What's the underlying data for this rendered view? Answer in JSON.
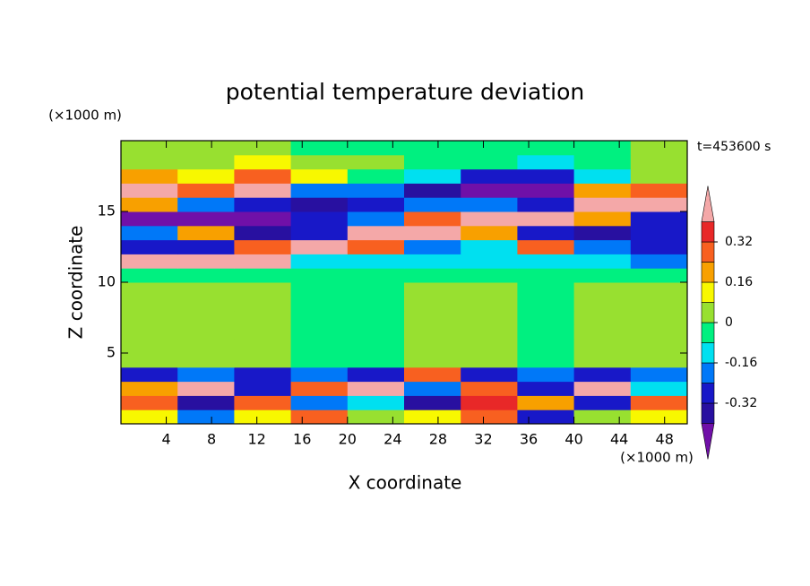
{
  "chart_data": {
    "type": "contour",
    "title": "potential temperature deviation",
    "x_label": "X coordinate",
    "y_label": "Z coordinate",
    "x_unit": "(×1000 m)",
    "y_unit": "(×1000 m)",
    "annotation": "t=453600 s",
    "xlim": [
      0,
      50
    ],
    "ylim": [
      0,
      20
    ],
    "xticks": [
      4,
      8,
      12,
      16,
      20,
      24,
      28,
      32,
      36,
      40,
      44,
      48
    ],
    "yticks": [
      5,
      10,
      15
    ],
    "xbins": [
      0,
      5,
      10,
      15,
      20,
      25,
      30,
      35,
      40,
      45,
      50
    ],
    "ybins": [
      0,
      1,
      2,
      3,
      4,
      5,
      6,
      7,
      8,
      9,
      10,
      11,
      12,
      13,
      14,
      15,
      16,
      17,
      18,
      19,
      20
    ],
    "values": [
      [
        0.12,
        -0.2,
        0.12,
        0.3,
        0.03,
        0.12,
        0.3,
        -0.3,
        0.03,
        0.12
      ],
      [
        0.3,
        -0.35,
        0.3,
        -0.2,
        -0.12,
        -0.35,
        0.36,
        0.2,
        -0.3,
        0.3
      ],
      [
        0.2,
        0.45,
        -0.3,
        0.3,
        0.45,
        -0.2,
        0.3,
        -0.3,
        0.45,
        -0.12
      ],
      [
        -0.3,
        -0.2,
        -0.3,
        -0.2,
        -0.3,
        0.3,
        -0.3,
        -0.2,
        -0.3,
        -0.2
      ],
      [
        0.03,
        0.03,
        0.03,
        -0.03,
        -0.03,
        0.03,
        0.03,
        -0.03,
        0.03,
        0.03
      ],
      [
        0.03,
        0.03,
        0.03,
        -0.03,
        -0.03,
        0.03,
        0.03,
        -0.03,
        0.03,
        0.03
      ],
      [
        0.03,
        0.03,
        0.03,
        -0.03,
        -0.03,
        0.03,
        0.03,
        -0.03,
        0.03,
        0.03
      ],
      [
        0.03,
        0.03,
        0.03,
        -0.03,
        -0.03,
        0.03,
        0.03,
        -0.03,
        0.03,
        0.03
      ],
      [
        0.03,
        0.03,
        0.03,
        -0.03,
        -0.03,
        0.03,
        0.03,
        -0.03,
        0.03,
        0.03
      ],
      [
        0.03,
        0.03,
        0.03,
        -0.03,
        -0.03,
        0.03,
        0.03,
        -0.03,
        0.03,
        0.03
      ],
      [
        -0.03,
        -0.03,
        -0.03,
        -0.03,
        -0.03,
        -0.03,
        -0.03,
        -0.03,
        -0.03,
        -0.03
      ],
      [
        0.45,
        0.45,
        0.45,
        -0.12,
        -0.12,
        -0.12,
        -0.12,
        -0.12,
        -0.12,
        -0.2
      ],
      [
        -0.3,
        -0.3,
        0.3,
        0.45,
        0.3,
        -0.2,
        -0.12,
        0.3,
        -0.2,
        -0.3
      ],
      [
        -0.2,
        0.2,
        -0.35,
        -0.3,
        0.45,
        0.45,
        0.2,
        -0.3,
        -0.35,
        -0.3
      ],
      [
        -0.45,
        -0.45,
        -0.45,
        -0.3,
        -0.2,
        0.3,
        0.45,
        0.45,
        0.2,
        -0.3
      ],
      [
        0.2,
        -0.2,
        -0.3,
        -0.35,
        -0.3,
        -0.2,
        -0.2,
        -0.3,
        0.45,
        0.45
      ],
      [
        0.45,
        0.3,
        0.45,
        -0.2,
        -0.2,
        -0.35,
        -0.45,
        -0.45,
        0.2,
        0.3
      ],
      [
        0.2,
        0.12,
        0.3,
        0.12,
        -0.03,
        -0.12,
        -0.3,
        -0.3,
        -0.12,
        0.03
      ],
      [
        0.03,
        0.03,
        0.12,
        0.05,
        0.03,
        -0.03,
        -0.03,
        -0.12,
        -0.03,
        0.03
      ],
      [
        0.03,
        0.03,
        0.03,
        -0.03,
        -0.03,
        -0.03,
        -0.03,
        -0.03,
        -0.03,
        0.03
      ]
    ],
    "levels": [
      -0.4,
      -0.32,
      -0.24,
      -0.16,
      -0.08,
      0,
      0.08,
      0.16,
      0.24,
      0.32,
      0.4
    ],
    "colors": [
      "#7010a8",
      "#2810a0",
      "#1818c8",
      "#0078f8",
      "#00e0f0",
      "#00f080",
      "#98e030",
      "#f8f800",
      "#f8a000",
      "#f86020",
      "#e82828",
      "#f4a8a8"
    ],
    "colorbar_ticks": [
      0.32,
      0.16,
      0,
      -0.16,
      -0.32
    ]
  }
}
